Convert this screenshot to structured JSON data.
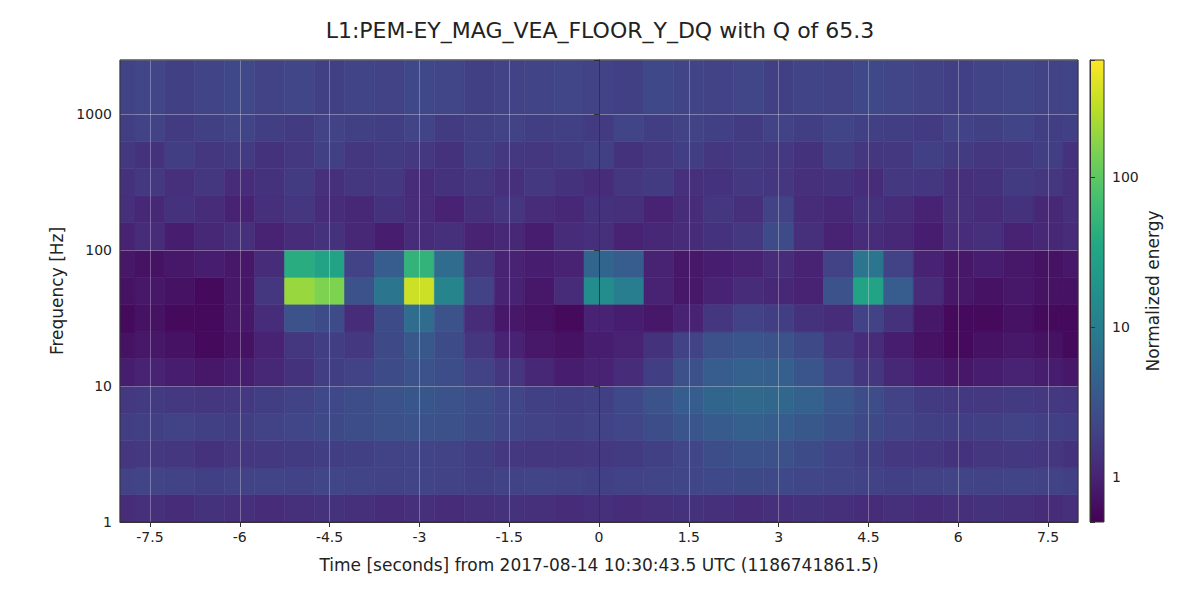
{
  "chart_data": {
    "type": "heatmap",
    "title": "L1:PEM-EY_MAG_VEA_FLOOR_Y_DQ with Q of 65.3",
    "x_label": "Time [seconds] from 2017-08-14 10:30:43.5 UTC (1186741861.5)",
    "y_label": "Frequency [Hz]",
    "xlim": [
      -8,
      8
    ],
    "xticks": [
      -7.5,
      -6,
      -4.5,
      -3,
      -1.5,
      0,
      1.5,
      3,
      4.5,
      6,
      7.5
    ],
    "ylim": [
      1,
      2500
    ],
    "yticks": [
      1,
      10,
      100,
      1000
    ],
    "log": "y",
    "grid": true,
    "time_edges": [
      -8,
      -7.75,
      -7.25,
      -6.75,
      -6.25,
      -5.75,
      -5.25,
      -4.75,
      -4.25,
      -3.75,
      -3.25,
      -2.75,
      -2.25,
      -1.75,
      -1.25,
      -0.75,
      -0.25,
      0.25,
      0.75,
      1.25,
      1.75,
      2.25,
      2.75,
      3.25,
      3.75,
      4.25,
      4.75,
      5.25,
      5.75,
      6.25,
      6.75,
      7.25,
      7.75,
      8
    ],
    "frequency_edges": [
      1,
      1.6,
      2.5,
      4,
      6.3,
      10,
      16,
      25,
      40,
      63,
      100,
      160,
      250,
      400,
      630,
      1000,
      2500
    ],
    "energy": [
      [
        1.2,
        1.3,
        1.2,
        1.4,
        1.3,
        1.2,
        1.3,
        1.4,
        1.3,
        1.2,
        1.3,
        1.2,
        1.3,
        1.4,
        1.3,
        1.2,
        1.3,
        1.2,
        1.3,
        1.4,
        1.3,
        1.2,
        1.3,
        1.4,
        1.3,
        1.2,
        1.3,
        1.2,
        1.3,
        1.4,
        1.3,
        1.2,
        1.3
      ],
      [
        2.0,
        2.1,
        2.0,
        1.9,
        2.0,
        2.1,
        2.0,
        2.2,
        2.1,
        2.0,
        2.1,
        2.0,
        1.9,
        2.0,
        2.1,
        2.0,
        1.9,
        2.0,
        2.1,
        2.2,
        2.3,
        2.4,
        2.3,
        2.2,
        2.1,
        2.0,
        1.9,
        2.0,
        2.1,
        2.0,
        2.1,
        2.0,
        1.9
      ],
      [
        1.5,
        1.6,
        1.5,
        1.4,
        1.5,
        1.6,
        1.7,
        1.8,
        1.9,
        2.0,
        2.1,
        2.0,
        1.8,
        1.6,
        1.5,
        1.5,
        1.6,
        1.7,
        1.9,
        2.2,
        2.6,
        2.9,
        2.8,
        2.5,
        2.1,
        1.8,
        1.6,
        1.5,
        1.4,
        1.5,
        1.6,
        1.5,
        1.4
      ],
      [
        1.8,
        1.9,
        2.0,
        1.9,
        1.8,
        2.0,
        2.2,
        2.4,
        2.6,
        2.8,
        3.0,
        2.8,
        2.5,
        2.2,
        2.0,
        1.9,
        2.0,
        2.2,
        2.6,
        3.2,
        3.8,
        4.2,
        4.0,
        3.5,
        2.9,
        2.4,
        2.1,
        1.9,
        1.8,
        1.9,
        2.0,
        1.9,
        1.8
      ],
      [
        1.6,
        1.7,
        1.6,
        1.5,
        1.6,
        1.8,
        2.0,
        2.3,
        2.6,
        3.0,
        3.3,
        3.0,
        2.6,
        2.2,
        1.9,
        1.8,
        1.9,
        2.3,
        3.0,
        4.0,
        5.0,
        5.5,
        5.2,
        4.4,
        3.4,
        2.6,
        2.0,
        1.7,
        1.6,
        1.6,
        1.7,
        1.6,
        1.5
      ],
      [
        0.9,
        1.0,
        0.9,
        0.8,
        0.9,
        1.1,
        1.4,
        1.8,
        2.0,
        2.5,
        3.0,
        2.6,
        2.0,
        1.5,
        1.1,
        0.9,
        1.0,
        1.2,
        1.8,
        2.8,
        4.0,
        4.5,
        4.2,
        3.2,
        2.2,
        1.5,
        1.1,
        0.9,
        0.8,
        0.9,
        1.0,
        0.9,
        0.8
      ],
      [
        0.7,
        0.8,
        0.7,
        0.6,
        0.7,
        1.0,
        1.5,
        1.8,
        1.6,
        2.4,
        3.5,
        2.5,
        1.5,
        1.0,
        0.8,
        0.7,
        0.9,
        1.0,
        1.4,
        2.0,
        2.8,
        3.2,
        3.0,
        2.4,
        1.6,
        1.2,
        0.9,
        0.7,
        0.6,
        0.7,
        0.8,
        0.7,
        0.6
      ],
      [
        0.6,
        0.7,
        0.6,
        0.6,
        0.8,
        1.2,
        3.0,
        2.5,
        1.2,
        2.5,
        6.0,
        3.0,
        1.2,
        0.8,
        0.7,
        0.6,
        1.0,
        0.9,
        0.8,
        1.0,
        1.5,
        2.0,
        1.8,
        1.4,
        1.2,
        2.0,
        1.4,
        0.8,
        0.6,
        0.6,
        0.7,
        0.6,
        0.6
      ],
      [
        0.7,
        0.8,
        0.7,
        0.6,
        0.8,
        1.5,
        200,
        150,
        3.0,
        8.0,
        350,
        12,
        2.0,
        1.0,
        0.8,
        1.2,
        15,
        10,
        1.0,
        0.8,
        1.0,
        1.2,
        1.1,
        1.0,
        3.0,
        30,
        4.0,
        1.2,
        0.8,
        0.7,
        0.8,
        0.7,
        0.7
      ],
      [
        0.8,
        0.7,
        0.8,
        0.9,
        0.8,
        1.2,
        40,
        30,
        2.0,
        4.0,
        50,
        6.0,
        1.5,
        1.0,
        0.9,
        1.0,
        5.0,
        4.0,
        1.0,
        0.8,
        0.9,
        1.0,
        1.2,
        1.0,
        2.0,
        8.0,
        2.0,
        1.0,
        0.8,
        0.9,
        0.8,
        0.7,
        0.8
      ],
      [
        1.0,
        1.2,
        0.9,
        1.1,
        1.3,
        1.0,
        1.2,
        1.4,
        1.1,
        0.9,
        1.2,
        1.3,
        1.0,
        1.1,
        0.9,
        1.2,
        1.3,
        1.0,
        1.1,
        1.2,
        1.4,
        1.6,
        2.5,
        1.3,
        1.0,
        1.2,
        1.1,
        0.9,
        1.2,
        1.3,
        1.0,
        1.1,
        1.2
      ],
      [
        1.3,
        1.1,
        1.4,
        1.2,
        1.0,
        1.3,
        1.5,
        1.2,
        1.1,
        1.4,
        1.2,
        1.0,
        1.3,
        1.5,
        1.2,
        1.1,
        1.4,
        1.3,
        1.0,
        1.2,
        1.5,
        1.3,
        2.0,
        1.2,
        1.1,
        1.4,
        1.2,
        1.0,
        1.3,
        1.2,
        1.4,
        1.1,
        1.3
      ],
      [
        1.4,
        1.6,
        1.3,
        1.5,
        1.2,
        1.4,
        1.7,
        1.3,
        1.5,
        1.6,
        1.2,
        1.4,
        1.5,
        1.3,
        1.6,
        1.4,
        1.2,
        1.5,
        1.7,
        1.3,
        1.4,
        1.6,
        1.5,
        1.3,
        1.4,
        1.2,
        1.6,
        1.5,
        1.3,
        1.4,
        1.7,
        1.5,
        1.3
      ],
      [
        1.6,
        1.4,
        1.8,
        1.5,
        1.7,
        1.4,
        1.6,
        1.9,
        1.5,
        1.7,
        1.6,
        1.4,
        1.8,
        1.6,
        1.5,
        1.7,
        1.9,
        1.4,
        1.6,
        1.8,
        1.5,
        1.7,
        1.6,
        1.4,
        1.8,
        1.5,
        1.6,
        1.9,
        1.7,
        1.5,
        1.6,
        1.8,
        1.4
      ],
      [
        1.8,
        2.0,
        1.7,
        1.9,
        2.1,
        1.8,
        1.7,
        2.0,
        1.9,
        1.8,
        2.1,
        1.7,
        1.9,
        2.0,
        1.8,
        1.9,
        1.7,
        2.1,
        1.8,
        2.0,
        1.9,
        1.7,
        2.0,
        1.8,
        2.1,
        1.9,
        1.8,
        1.7,
        2.0,
        1.9,
        2.1,
        1.8,
        1.9
      ],
      [
        2.0,
        2.2,
        1.9,
        2.1,
        2.3,
        2.0,
        2.2,
        1.9,
        2.1,
        2.0,
        2.3,
        2.2,
        1.9,
        2.0,
        2.1,
        2.2,
        2.0,
        1.9,
        2.3,
        2.1,
        2.0,
        2.2,
        1.9,
        2.1,
        2.0,
        2.3,
        2.2,
        2.0,
        1.9,
        2.1,
        2.2,
        2.0,
        2.1
      ]
    ],
    "colorbar": {
      "label": "Normalized energy",
      "range": [
        0.5,
        600
      ],
      "ticks": [
        1,
        10,
        100
      ]
    }
  }
}
